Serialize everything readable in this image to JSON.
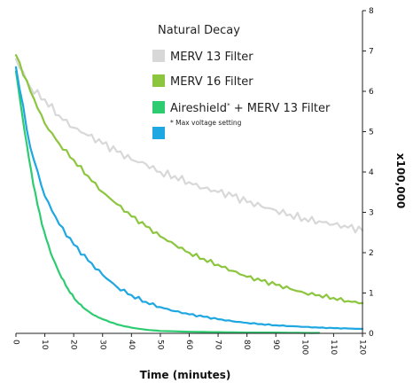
{
  "chart_data": {
    "type": "line",
    "title": "",
    "xlabel": "Time (minutes)",
    "ylabel": "x100,000",
    "xlim": [
      0,
      120
    ],
    "ylim": [
      0,
      8
    ],
    "x_ticks": [
      0,
      10,
      20,
      30,
      40,
      50,
      60,
      70,
      80,
      90,
      100,
      110,
      120
    ],
    "y_ticks": [
      0,
      1,
      2,
      3,
      4,
      5,
      6,
      7,
      8
    ],
    "y_axis_side": "right",
    "grid": false,
    "legend_position": "top-right",
    "legend": {
      "heading": "Natural Decay",
      "note": "* Max voltage setting"
    },
    "series": [
      {
        "name": "MERV 13 Filter",
        "color": "#d8d8d8",
        "x": [
          0,
          5,
          10,
          15,
          20,
          25,
          30,
          35,
          40,
          45,
          50,
          55,
          60,
          65,
          70,
          75,
          80,
          85,
          90,
          95,
          100,
          105,
          110,
          115,
          120
        ],
        "y": [
          6.8,
          6.1,
          5.8,
          5.4,
          5.1,
          4.9,
          4.7,
          4.5,
          4.3,
          4.2,
          4.0,
          3.9,
          3.75,
          3.6,
          3.5,
          3.4,
          3.25,
          3.15,
          3.05,
          2.95,
          2.85,
          2.78,
          2.7,
          2.62,
          2.55
        ]
      },
      {
        "name": "MERV 16 Filter",
        "color": "#8cc63f",
        "x": [
          0,
          5,
          10,
          15,
          20,
          25,
          30,
          35,
          40,
          45,
          50,
          55,
          60,
          65,
          70,
          75,
          80,
          85,
          90,
          95,
          100,
          105,
          110,
          115,
          120
        ],
        "y": [
          6.9,
          6.0,
          5.2,
          4.7,
          4.3,
          3.9,
          3.5,
          3.2,
          2.9,
          2.65,
          2.4,
          2.2,
          2.0,
          1.85,
          1.7,
          1.55,
          1.4,
          1.3,
          1.2,
          1.1,
          1.0,
          0.95,
          0.88,
          0.8,
          0.75
        ]
      },
      {
        "name": "Aireshield* + MERV 13 Filter",
        "color": "#2ecc71",
        "x": [
          0,
          3,
          6,
          9,
          12,
          15,
          18,
          21,
          24,
          27,
          30,
          35,
          40,
          45,
          50,
          60,
          70,
          80,
          90,
          100,
          105
        ],
        "y": [
          6.5,
          5.0,
          3.7,
          2.7,
          2.0,
          1.5,
          1.1,
          0.8,
          0.6,
          0.45,
          0.35,
          0.22,
          0.14,
          0.09,
          0.06,
          0.04,
          0.03,
          0.02,
          0.02,
          0.01,
          0.01
        ]
      },
      {
        "name": "",
        "color": "#1ea7e1",
        "x": [
          0,
          5,
          10,
          15,
          20,
          25,
          30,
          35,
          40,
          45,
          50,
          55,
          60,
          65,
          70,
          75,
          80,
          85,
          90,
          95,
          100,
          105,
          110,
          115,
          120
        ],
        "y": [
          6.6,
          4.6,
          3.4,
          2.7,
          2.2,
          1.8,
          1.45,
          1.15,
          0.95,
          0.78,
          0.65,
          0.55,
          0.47,
          0.41,
          0.35,
          0.3,
          0.26,
          0.23,
          0.2,
          0.18,
          0.16,
          0.14,
          0.13,
          0.12,
          0.11
        ]
      }
    ]
  }
}
